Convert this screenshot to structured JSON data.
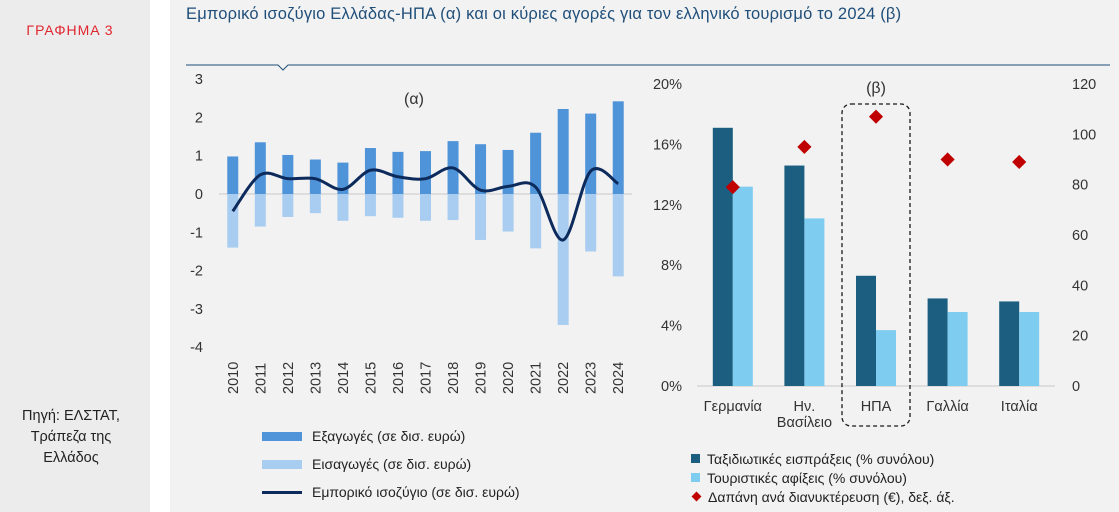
{
  "figure_label": "ΓΡΑΦΗΜΑ 3",
  "title": "Εμπορικό ισοζύγιο Ελλάδας-ΗΠΑ (α) και οι κύριες αγορές για τον ελληνικό τουρισμό το 2024 (β)",
  "source": [
    "Πηγή: ΕΛΣΤΑΤ,",
    "Τράπεζα της",
    "Ελλάδος"
  ],
  "colors": {
    "exports": "#4f93d8",
    "imports": "#a9cdf0",
    "balance": "#0d2a5c",
    "receipts": "#1b5e80",
    "arrivals": "#7ecdf0",
    "spending": "#c00000",
    "title": "#1f4e79"
  },
  "legend_a": [
    "Εξαγωγές (σε δισ. ευρώ)",
    "Εισαγωγές (σε δισ. ευρώ)",
    "Εμπορικό ισοζύγιο (σε δισ. ευρώ)"
  ],
  "legend_b": [
    "Ταξιδιωτικές εισπράξεις (% συνόλου)",
    "Τουριστικές αφίξεις (% συνόλου)",
    "Δαπάνη ανά διανυκτέρευση (€), δεξ. άξ."
  ],
  "chart_data": [
    {
      "type": "bar",
      "panel_label": "(α)",
      "categories": [
        "2010",
        "2011",
        "2012",
        "2013",
        "2014",
        "2015",
        "2016",
        "2017",
        "2018",
        "2019",
        "2020",
        "2021",
        "2022",
        "2023",
        "2024"
      ],
      "series": [
        {
          "name": "Εξαγωγές (σε δισ. ευρώ)",
          "type": "bar",
          "values": [
            0.98,
            1.35,
            1.02,
            0.9,
            0.82,
            1.2,
            1.1,
            1.12,
            1.38,
            1.3,
            1.15,
            1.6,
            2.22,
            2.1,
            2.42
          ]
        },
        {
          "name": "Εισαγωγές (σε δισ. ευρώ)",
          "type": "bar",
          "values": [
            -1.4,
            -0.85,
            -0.6,
            -0.5,
            -0.7,
            -0.58,
            -0.62,
            -0.7,
            -0.68,
            -1.2,
            -0.98,
            -1.42,
            -3.42,
            -1.5,
            -2.15
          ]
        },
        {
          "name": "Εμπορικό ισοζύγιο (σε δισ. ευρώ)",
          "type": "line",
          "values": [
            -0.45,
            0.5,
            0.4,
            0.4,
            0.12,
            0.62,
            0.45,
            0.4,
            0.68,
            0.1,
            0.2,
            0.18,
            -1.2,
            0.6,
            0.27
          ]
        }
      ],
      "y_ticks": [
        "3",
        "2",
        "1",
        "0",
        "-1",
        "-2",
        "-3",
        "-4"
      ],
      "ylim": [
        -4,
        3
      ]
    },
    {
      "type": "bar",
      "panel_label": "(β)",
      "categories": [
        "Γερμανία",
        "Ην. Βασίλειο",
        "ΗΠΑ",
        "Γαλλία",
        "Ιταλία"
      ],
      "category_lines": [
        [
          "Γερμανία"
        ],
        [
          "Ην.",
          "Βασίλειο"
        ],
        [
          "ΗΠΑ"
        ],
        [
          "Γαλλία"
        ],
        [
          "Ιταλία"
        ]
      ],
      "series": [
        {
          "name": "Ταξιδιωτικές εισπράξεις (% συνόλου)",
          "type": "bar",
          "axis": "left",
          "values": [
            17.1,
            14.6,
            7.3,
            5.8,
            5.6
          ]
        },
        {
          "name": "Τουριστικές αφίξεις (% συνόλου)",
          "type": "bar",
          "axis": "left",
          "values": [
            13.2,
            11.1,
            3.7,
            4.9,
            4.9
          ]
        },
        {
          "name": "Δαπάνη ανά διανυκτέρευση (€), δεξ. άξ.",
          "type": "scatter",
          "axis": "right",
          "values": [
            79,
            95,
            107,
            90,
            89
          ]
        }
      ],
      "y_left_ticks": [
        "0%",
        "4%",
        "8%",
        "12%",
        "16%",
        "20%"
      ],
      "ylim_left": [
        0,
        20
      ],
      "y_right_ticks": [
        "0",
        "20",
        "40",
        "60",
        "80",
        "100",
        "120"
      ],
      "ylim_right": [
        0,
        120
      ],
      "highlight": "ΗΠΑ"
    }
  ]
}
